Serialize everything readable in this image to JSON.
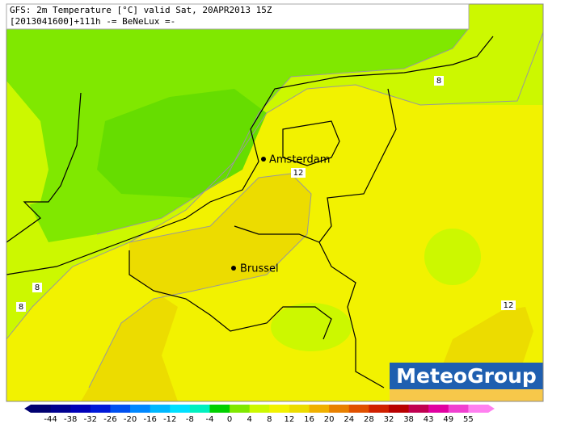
{
  "header": {
    "title": "GFS: 2m Temperature [°C] valid Sat, 20APR2013 15Z",
    "subtitle": "[2013041600]+111h -= BeNeLux =-"
  },
  "cities": [
    {
      "label": "Amsterdam"
    },
    {
      "label": "Brussel"
    }
  ],
  "contour_labels": [
    "8",
    "8",
    "8",
    "12",
    "12"
  ],
  "logo": "MeteoGroup",
  "colorbar": {
    "ticks": [
      "-44",
      "-38",
      "-32",
      "-26",
      "-20",
      "-16",
      "-12",
      "-8",
      "-4",
      "0",
      "4",
      "8",
      "12",
      "16",
      "20",
      "24",
      "28",
      "32",
      "38",
      "43",
      "49",
      "55"
    ]
  }
}
